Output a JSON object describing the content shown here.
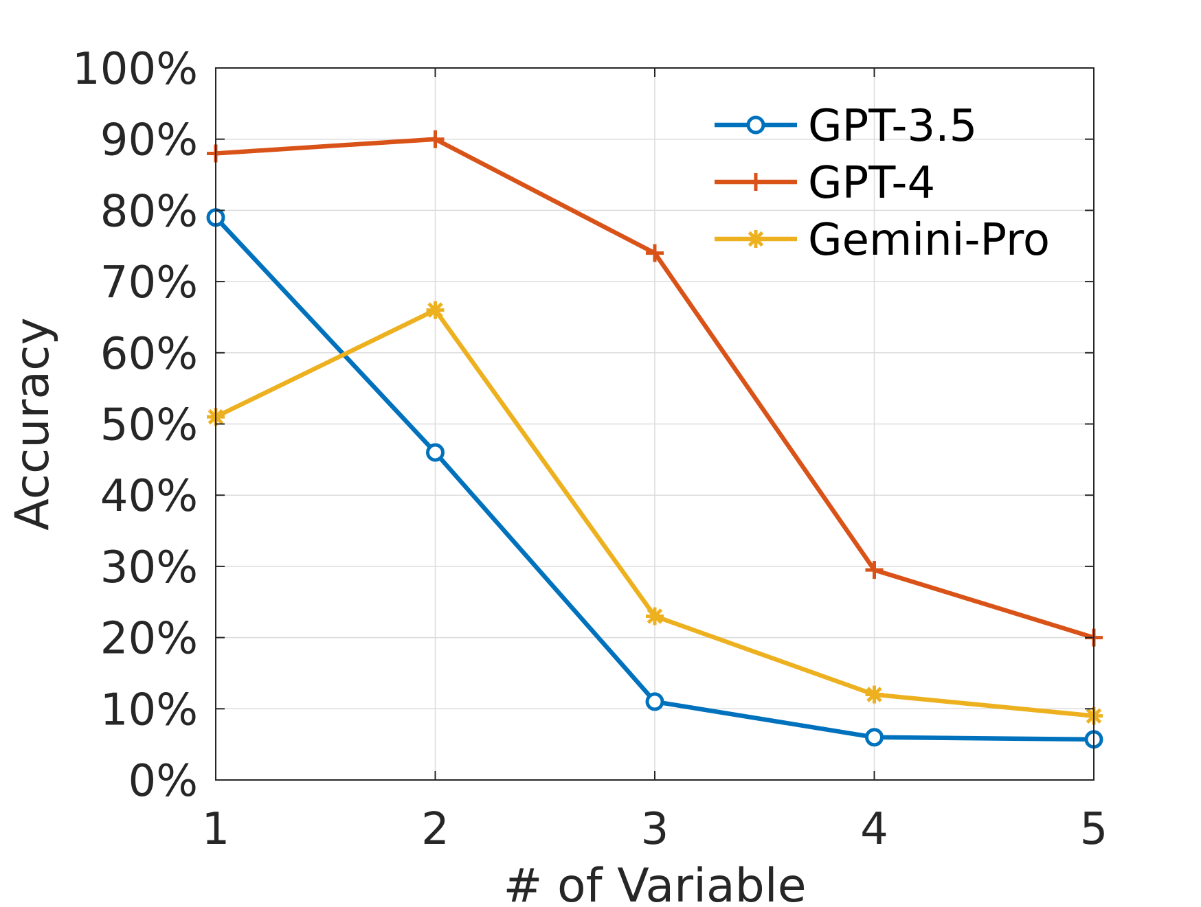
{
  "chart_data": {
    "type": "line",
    "title": "",
    "xlabel": "# of Variable",
    "ylabel": "Accuracy",
    "x": [
      1,
      2,
      3,
      4,
      5
    ],
    "xlim": [
      1,
      5
    ],
    "ylim": [
      0,
      100
    ],
    "yticks": [
      0,
      10,
      20,
      30,
      40,
      50,
      60,
      70,
      80,
      90,
      100
    ],
    "ytick_labels": [
      "0%",
      "10%",
      "20%",
      "30%",
      "40%",
      "50%",
      "60%",
      "70%",
      "80%",
      "90%",
      "100%"
    ],
    "xtick_labels": [
      "1",
      "2",
      "3",
      "4",
      "5"
    ],
    "grid": true,
    "legend_position": "top-right",
    "series": [
      {
        "name": "GPT-3.5",
        "values": [
          79,
          46,
          11,
          6,
          5.7
        ],
        "color": "#0072BD",
        "marker": "circle"
      },
      {
        "name": "GPT-4",
        "values": [
          88,
          90,
          74,
          29.5,
          20
        ],
        "color": "#D95319",
        "marker": "plus"
      },
      {
        "name": "Gemini-Pro",
        "values": [
          51,
          66,
          23,
          12,
          9
        ],
        "color": "#EDB120",
        "marker": "asterisk"
      }
    ]
  }
}
